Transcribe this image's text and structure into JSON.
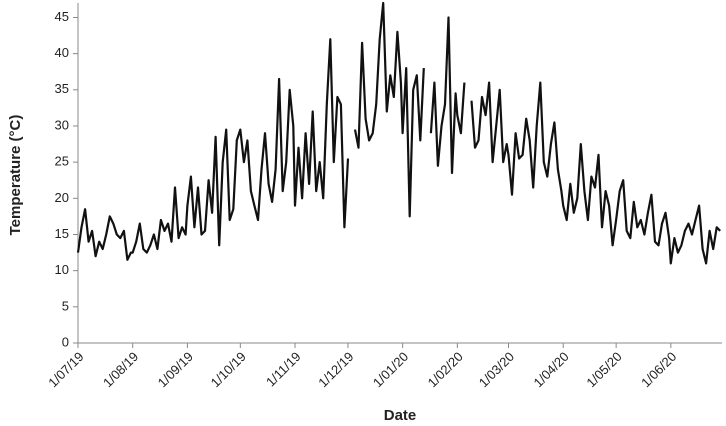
{
  "chart_data": {
    "type": "line",
    "xlabel": "Date",
    "ylabel": "Temperature  (°C)",
    "x": [
      "1/07/19",
      "3/07/19",
      "5/07/19",
      "7/07/19",
      "9/07/19",
      "11/07/19",
      "13/07/19",
      "15/07/19",
      "17/07/19",
      "19/07/19",
      "21/07/19",
      "23/07/19",
      "25/07/19",
      "27/07/19",
      "29/07/19",
      "31/07/19",
      "1/08/19",
      "3/08/19",
      "5/08/19",
      "7/08/19",
      "9/08/19",
      "11/08/19",
      "13/08/19",
      "15/08/19",
      "17/08/19",
      "19/08/19",
      "21/08/19",
      "23/08/19",
      "25/08/19",
      "27/08/19",
      "29/08/19",
      "31/08/19",
      "1/09/19",
      "3/09/19",
      "5/09/19",
      "7/09/19",
      "9/09/19",
      "11/09/19",
      "13/09/19",
      "15/09/19",
      "17/09/19",
      "19/09/19",
      "21/09/19",
      "23/09/19",
      "25/09/19",
      "27/09/19",
      "29/09/19",
      "1/10/19",
      "3/10/19",
      "5/10/19",
      "7/10/19",
      "9/10/19",
      "11/10/19",
      "13/10/19",
      "15/10/19",
      "17/10/19",
      "19/10/19",
      "21/10/19",
      "23/10/19",
      "25/10/19",
      "27/10/19",
      "29/10/19",
      "31/10/19",
      "1/11/19",
      "3/11/19",
      "5/11/19",
      "7/11/19",
      "9/11/19",
      "11/11/19",
      "13/11/19",
      "15/11/19",
      "17/11/19",
      "19/11/19",
      "21/11/19",
      "23/11/19",
      "25/11/19",
      "27/11/19",
      "29/11/19",
      "1/12/19",
      "3/12/19",
      "5/12/19",
      "7/12/19",
      "9/12/19",
      "11/12/19",
      "13/12/19",
      "15/12/19",
      "17/12/19",
      "19/12/19",
      "21/12/19",
      "23/12/19",
      "25/12/19",
      "27/12/19",
      "29/12/19",
      "31/12/19",
      "1/01/20",
      "3/01/20",
      "5/01/20",
      "7/01/20",
      "9/01/20",
      "11/01/20",
      "13/01/20",
      "15/01/20",
      "17/01/20",
      "19/01/20",
      "21/01/20",
      "23/01/20",
      "25/01/20",
      "27/01/20",
      "29/01/20",
      "31/01/20",
      "1/02/20",
      "3/02/20",
      "5/02/20",
      "7/02/20",
      "9/02/20",
      "11/02/20",
      "13/02/20",
      "15/02/20",
      "17/02/20",
      "19/02/20",
      "21/02/20",
      "23/02/20",
      "25/02/20",
      "27/02/20",
      "29/02/20",
      "1/03/20",
      "3/03/20",
      "5/03/20",
      "7/03/20",
      "9/03/20",
      "11/03/20",
      "13/03/20",
      "15/03/20",
      "17/03/20",
      "19/03/20",
      "21/03/20",
      "23/03/20",
      "25/03/20",
      "27/03/20",
      "29/03/20",
      "31/03/20",
      "1/04/20",
      "3/04/20",
      "5/04/20",
      "7/04/20",
      "9/04/20",
      "11/04/20",
      "13/04/20",
      "15/04/20",
      "17/04/20",
      "19/04/20",
      "21/04/20",
      "23/04/20",
      "25/04/20",
      "27/04/20",
      "29/04/20",
      "1/05/20",
      "3/05/20",
      "5/05/20",
      "7/05/20",
      "9/05/20",
      "11/05/20",
      "13/05/20",
      "15/05/20",
      "17/05/20",
      "19/05/20",
      "21/05/20",
      "23/05/20",
      "25/05/20",
      "27/05/20",
      "29/05/20",
      "31/05/20",
      "1/06/20",
      "3/06/20",
      "5/06/20",
      "7/06/20",
      "9/06/20",
      "11/06/20",
      "13/06/20",
      "15/06/20",
      "17/06/20",
      "19/06/20",
      "21/06/20",
      "23/06/20",
      "25/06/20",
      "27/06/20",
      "29/06/20"
    ],
    "series": [
      {
        "name": "Temperature",
        "color": "#111111",
        "values": [
          12.5,
          16,
          18.5,
          14,
          15.5,
          12,
          14,
          13,
          15,
          17.5,
          16.5,
          15,
          14.5,
          15.5,
          11.5,
          12.5,
          12.5,
          14,
          16.5,
          13,
          12.5,
          13.5,
          15,
          13,
          17,
          15.5,
          16.5,
          14,
          21.5,
          14.5,
          16,
          15,
          19,
          23,
          16,
          21.5,
          15,
          15.5,
          22.5,
          18,
          28.5,
          13.5,
          25,
          29.5,
          17,
          18.5,
          28,
          29.5,
          25,
          28,
          21,
          19,
          17,
          24,
          29,
          22,
          19.5,
          24,
          36.5,
          21,
          25,
          35,
          30,
          19,
          27,
          20,
          29,
          22,
          32,
          21,
          25,
          20,
          33,
          42,
          25,
          34,
          33,
          16,
          25.5,
          null,
          29.5,
          27,
          41.5,
          31,
          28,
          29,
          33,
          42,
          47,
          32,
          37,
          34,
          43,
          36,
          29,
          38,
          17.5,
          35,
          37,
          28,
          38,
          null,
          29,
          36,
          24.5,
          30,
          33,
          45,
          23.5,
          34.5,
          31.5,
          29,
          36,
          null,
          33.5,
          27,
          28,
          34,
          31.5,
          36,
          25,
          30,
          35,
          25,
          27.5,
          26,
          20.5,
          29,
          25.5,
          26,
          31,
          28,
          21.5,
          30,
          36,
          25,
          23,
          27.5,
          30.5,
          24,
          21,
          19,
          17,
          22,
          18,
          20,
          27.5,
          21,
          17,
          23,
          21.5,
          26,
          16,
          21,
          19,
          13.5,
          17,
          21,
          22.5,
          15.5,
          14.5,
          19.5,
          16,
          17,
          15,
          18,
          20.5,
          14,
          13.5,
          16.5,
          18,
          14.5,
          11,
          14.5,
          12.5,
          13.5,
          15.5,
          16.5,
          15,
          17,
          19,
          13,
          11,
          15.5,
          13,
          16,
          15.5
        ]
      }
    ],
    "xlim": [
      "1/07/19",
      "30/06/20"
    ],
    "xticks": [
      "1/07/19",
      "1/08/19",
      "1/09/19",
      "1/10/19",
      "1/11/19",
      "1/12/19",
      "1/01/20",
      "1/02/20",
      "1/03/20",
      "1/04/20",
      "1/05/20",
      "1/06/20"
    ],
    "ylim": [
      0,
      47
    ],
    "yticks": [
      0,
      5,
      10,
      15,
      20,
      25,
      30,
      35,
      40,
      45
    ],
    "grid": false
  }
}
